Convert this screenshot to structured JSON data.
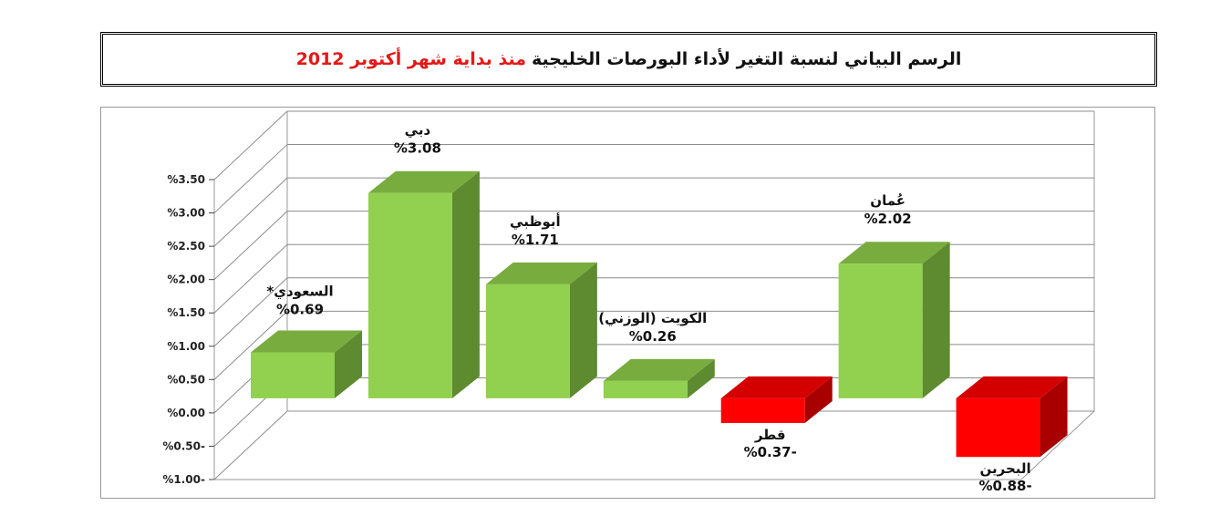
{
  "title": {
    "main": "الرسم البياني لنسبة التغير لأداء البورصات الخليجية",
    "accent": "منذ بداية شهر أكتوبر 2012"
  },
  "chart_data": {
    "type": "bar",
    "style": "3d",
    "categories": [
      "السعودي*",
      "دبي",
      "أبوظبي",
      "الكويت (الوزني)",
      "قطر",
      "عُمان",
      "البحرين"
    ],
    "values": [
      0.69,
      3.08,
      1.71,
      0.26,
      -0.37,
      2.02,
      -0.88
    ],
    "value_labels": [
      "%0.69",
      "%3.08",
      "%1.71",
      "%0.26",
      "%0.37-",
      "%2.02",
      "%0.88-"
    ],
    "ylim": [
      -1.0,
      3.5
    ],
    "yticks": [
      3.5,
      3.0,
      2.5,
      2.0,
      1.5,
      1.0,
      0.5,
      0.0,
      -0.5,
      -1.0
    ],
    "ytick_labels": [
      "%3.50",
      "%3.00",
      "%2.50",
      "%2.00",
      "%1.50",
      "%1.00",
      "%0.50",
      "%0.00",
      "%0.50-",
      "%1.00-"
    ],
    "grid": true,
    "legend": false,
    "colors": {
      "positive_front": "#92d050",
      "positive_top": "#79ac3f",
      "positive_side": "#5e8a30",
      "negative_front": "#ff0000",
      "negative_top": "#d40000",
      "negative_side": "#a80000"
    }
  }
}
